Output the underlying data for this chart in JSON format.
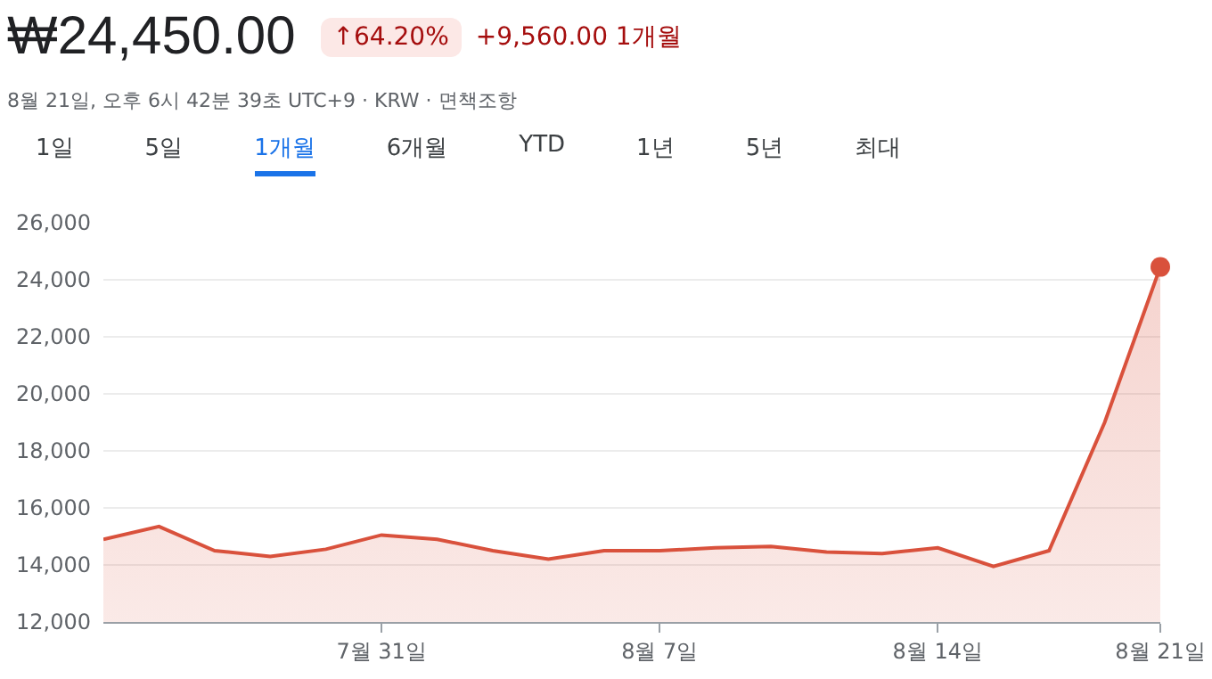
{
  "chart_data": {
    "type": "area",
    "title": "₩24,450.00",
    "subtitle": "8월 21일, 오후 6시 42분 39초 UTC+9 · KRW · 면책조항",
    "annotations": [
      "↑64.20%",
      "+9,560.00 1개월",
      "1일",
      "5일",
      "1개월",
      "6개월",
      "YTD",
      "1년",
      "5년",
      "최대"
    ],
    "categories": [
      null,
      null,
      null,
      null,
      null,
      "7월 31일",
      null,
      null,
      null,
      null,
      "8월 7일",
      null,
      null,
      null,
      null,
      "8월 14일",
      null,
      null,
      null,
      "8월 21일"
    ],
    "series": [
      {
        "color": "#d9513c",
        "values": [
          14900,
          15350,
          14500,
          14300,
          14550,
          15050,
          14900,
          14500,
          14200,
          14500,
          14500,
          14600,
          14650,
          14450,
          14400,
          14600,
          13950,
          14500,
          19000,
          24450
        ]
      }
    ],
    "ylim": [
      12000,
      26000
    ],
    "yticks": [
      {
        "value": 12000,
        "label": "12,000"
      },
      {
        "value": 14000,
        "label": "14,000"
      },
      {
        "value": 16000,
        "label": "16,000"
      },
      {
        "value": 18000,
        "label": "18,000"
      },
      {
        "value": 20000,
        "label": "20,000"
      },
      {
        "value": 22000,
        "label": "22,000"
      },
      {
        "value": 24000,
        "label": "24,000"
      },
      {
        "value": 26000,
        "label": "26,000"
      }
    ],
    "grid": "y",
    "line_style": "solid"
  }
}
